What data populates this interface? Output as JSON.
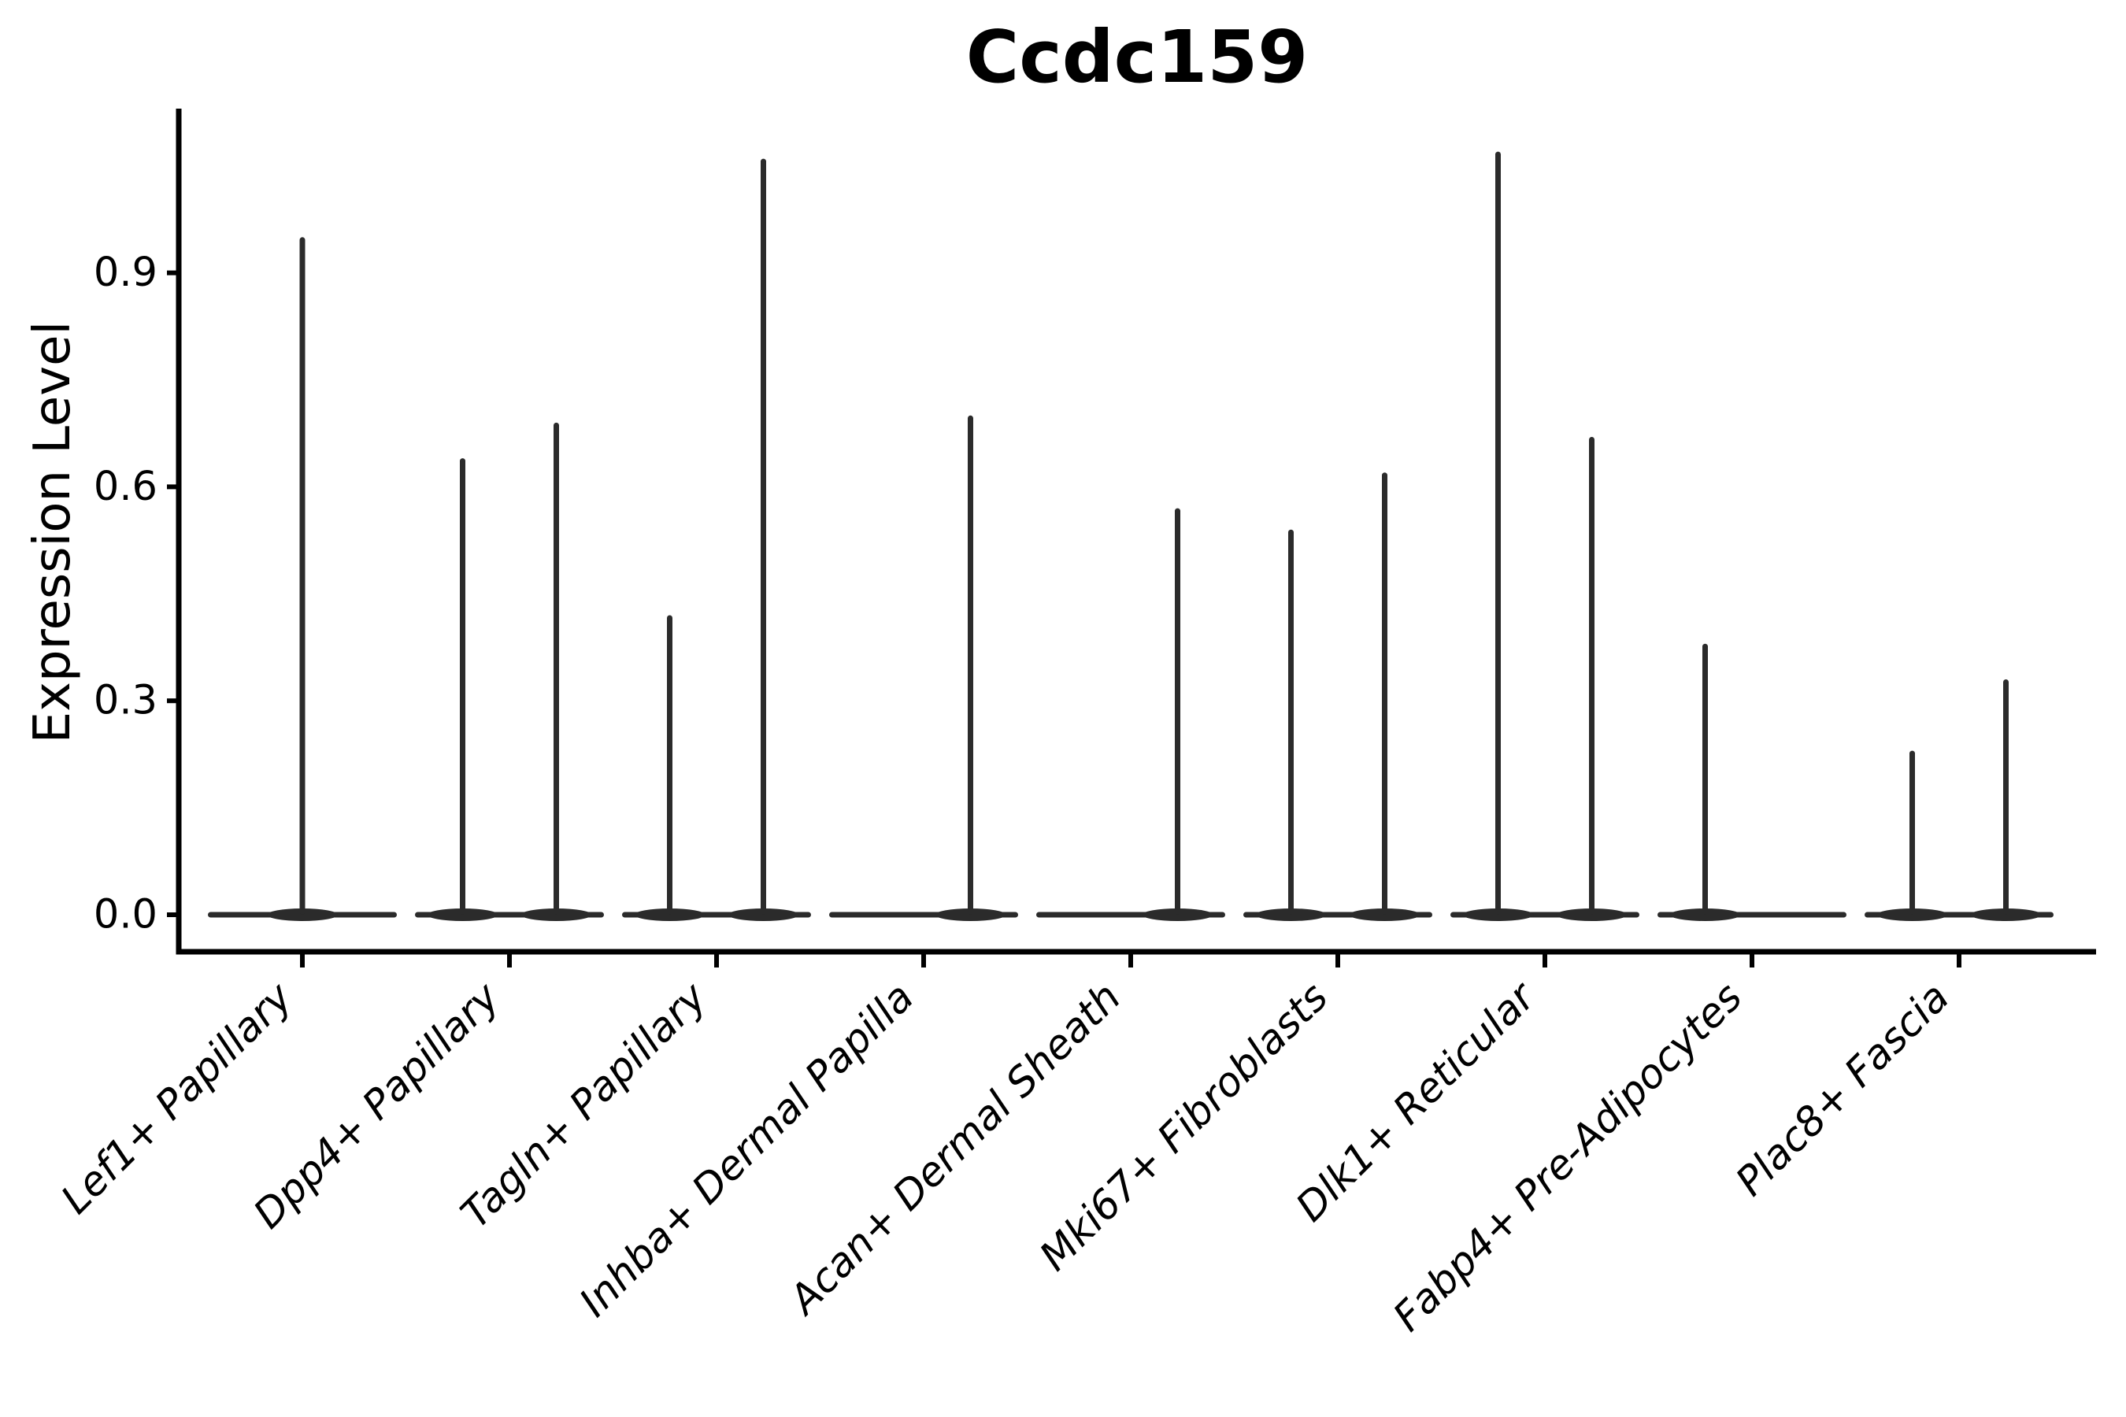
{
  "figure": {
    "background": "#ffffff"
  },
  "chart_data": {
    "type": "violin",
    "title": "Ccdc159",
    "xlabel": "",
    "ylabel": "Expression Level",
    "ylim": [
      0,
      1.13
    ],
    "yticks": [
      {
        "value": 0.0,
        "label": "0.0"
      },
      {
        "value": 0.3,
        "label": "0.3"
      },
      {
        "value": 0.6,
        "label": "0.6"
      },
      {
        "value": 0.9,
        "label": "0.9"
      }
    ],
    "grid": false,
    "legend": null,
    "xtick_label_rotation": 45,
    "xtick_label_style": "italic",
    "categories": [
      "Lef1+ Papillary",
      "Dpp4+ Papillary",
      "Tagln+ Papillary",
      "Inhba+ Dermal Papilla",
      "Acan+ Dermal Sheath",
      "Mki67+ Fibroblasts",
      "Dlk1+ Reticular",
      "Fabp4+ Pre-Adipocytes",
      "Plac8+ Fascia"
    ],
    "violins": [
      {
        "category": "Lef1+ Papillary",
        "baseline_value": 0.0,
        "spikes": [
          {
            "position": "center",
            "max": 0.95
          }
        ]
      },
      {
        "category": "Dpp4+ Papillary",
        "baseline_value": 0.0,
        "spikes": [
          {
            "position": "left",
            "max": 0.64
          },
          {
            "position": "right",
            "max": 0.69
          }
        ]
      },
      {
        "category": "Tagln+ Papillary",
        "baseline_value": 0.0,
        "spikes": [
          {
            "position": "left",
            "max": 0.42
          },
          {
            "position": "right",
            "max": 1.06
          }
        ]
      },
      {
        "category": "Inhba+ Dermal Papilla",
        "baseline_value": 0.0,
        "spikes": [
          {
            "position": "right",
            "max": 0.7
          }
        ]
      },
      {
        "category": "Acan+ Dermal Sheath",
        "baseline_value": 0.0,
        "spikes": [
          {
            "position": "right",
            "max": 0.57
          }
        ]
      },
      {
        "category": "Mki67+ Fibroblasts",
        "baseline_value": 0.0,
        "spikes": [
          {
            "position": "left",
            "max": 0.54
          },
          {
            "position": "right",
            "max": 0.62
          }
        ]
      },
      {
        "category": "Dlk1+ Reticular",
        "baseline_value": 0.0,
        "spikes": [
          {
            "position": "left",
            "max": 1.07
          },
          {
            "position": "right",
            "max": 0.67
          }
        ]
      },
      {
        "category": "Fabp4+ Pre-Adipocytes",
        "baseline_value": 0.0,
        "spikes": [
          {
            "position": "left",
            "max": 0.38
          }
        ]
      },
      {
        "category": "Plac8+ Fascia",
        "baseline_value": 0.0,
        "spikes": [
          {
            "position": "left",
            "max": 0.23
          },
          {
            "position": "right",
            "max": 0.33
          }
        ]
      }
    ],
    "colors": {
      "violin": "#2b2b2b",
      "axis": "#000000",
      "text": "#000000"
    }
  }
}
